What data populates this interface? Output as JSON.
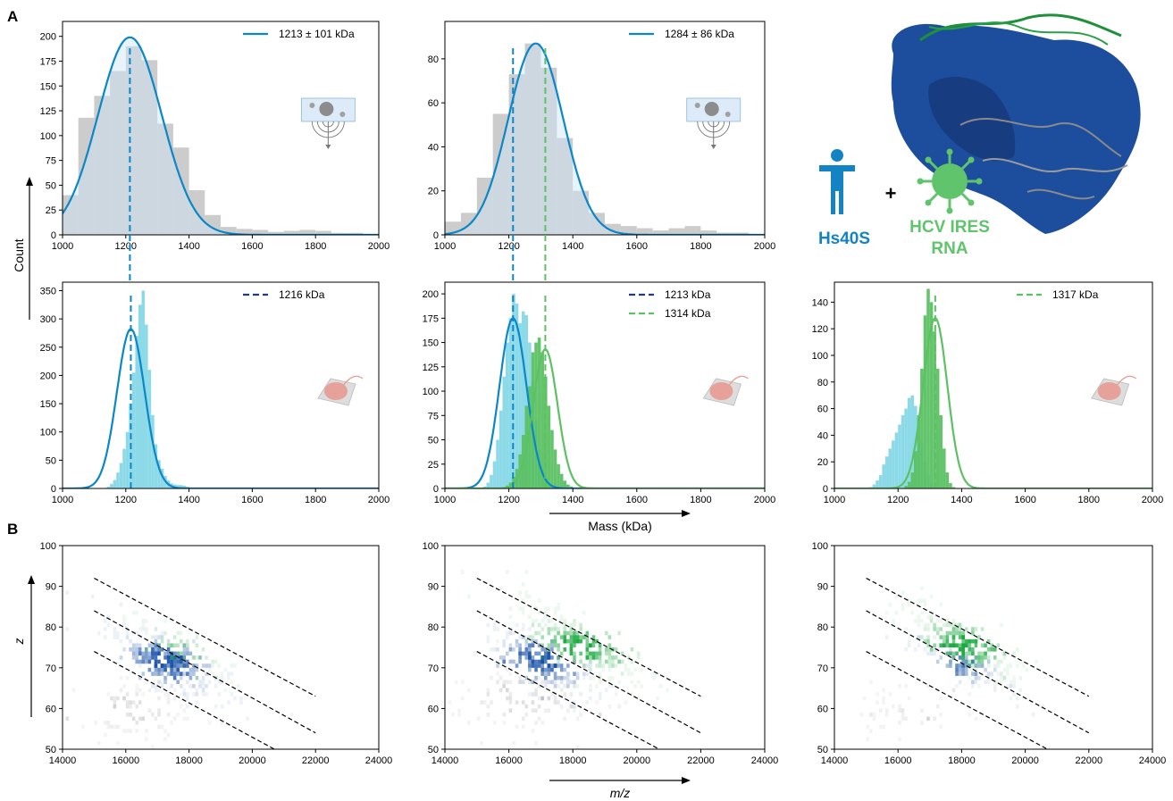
{
  "panel_labels": {
    "a": "A",
    "b": "B"
  },
  "axis_texts": {
    "count": "Count",
    "mass": "Mass (kDa)",
    "z": "z",
    "mz": "m/z"
  },
  "inset": {
    "hs40s": "Hs40S",
    "plus": "+",
    "hcv_line1": "HCV IRES",
    "hcv_line2": "RNA"
  },
  "colors": {
    "light_blue": "#0a87c8",
    "cyan_hist": "#8cd9e8",
    "gray_hist": "#cccccc",
    "green": "#1aa640",
    "green_hist": "#5cc163",
    "navy": "#1f3a8c",
    "hs40s_text": "#1483c3",
    "hcv_text": "#5fc46b",
    "blue_heat": "#1750a8",
    "green_heat": "#16a83c"
  },
  "chart_data": [
    {
      "id": "A-top-left",
      "type": "bar",
      "xlim": [
        1000,
        2000
      ],
      "ylim": [
        0,
        215
      ],
      "xticks": [
        1000,
        1200,
        1400,
        1600,
        1800,
        2000
      ],
      "yticks": [
        0,
        25,
        50,
        75,
        100,
        125,
        150,
        175,
        200
      ],
      "bin_start": 1000,
      "bin_width": 50,
      "bars": [
        {
          "color": "gray",
          "values": [
            40,
            118,
            140,
            165,
            190,
            176,
            112,
            88,
            45,
            20,
            8,
            6,
            5,
            3,
            4,
            5,
            4,
            2,
            2,
            1
          ]
        }
      ],
      "fits": [
        {
          "type": "gauss",
          "mu": 1213,
          "sigma": 101,
          "amp": 199,
          "color": "light_blue"
        }
      ],
      "vlines": [
        {
          "x": 1213,
          "color": "light_blue",
          "to_bottom": true
        }
      ],
      "legend": [
        {
          "label": "1213 ± 101 kDa",
          "style": "solid",
          "color": "light_blue"
        }
      ],
      "icon": "mass-photometry-icon"
    },
    {
      "id": "A-top-middle",
      "type": "bar",
      "xlim": [
        1000,
        2000
      ],
      "ylim": [
        0,
        97
      ],
      "xticks": [
        1000,
        1200,
        1400,
        1600,
        1800,
        2000
      ],
      "yticks": [
        0,
        20,
        40,
        60,
        80
      ],
      "bin_start": 1000,
      "bin_width": 50,
      "bars": [
        {
          "color": "gray",
          "values": [
            6,
            10,
            26,
            55,
            73,
            87,
            76,
            44,
            20,
            10,
            5,
            4,
            3,
            2,
            3,
            4,
            2,
            1,
            1,
            0
          ]
        }
      ],
      "fits": [
        {
          "type": "gauss",
          "mu": 1284,
          "sigma": 86,
          "amp": 87,
          "color": "light_blue"
        }
      ],
      "vlines": [
        {
          "x": 1213,
          "color": "light_blue",
          "to_bottom": true
        },
        {
          "x": 1314,
          "color": "green",
          "to_bottom": true
        }
      ],
      "legend": [
        {
          "label": "1284 ± 86 kDa",
          "style": "solid",
          "color": "light_blue"
        }
      ],
      "icon": "mass-photometry-icon"
    },
    {
      "id": "A-bottom-left",
      "type": "bar",
      "xlim": [
        1000,
        2000
      ],
      "ylim": [
        0,
        365
      ],
      "xticks": [
        1000,
        1200,
        1400,
        1600,
        1800,
        2000
      ],
      "yticks": [
        0,
        50,
        100,
        150,
        200,
        250,
        300,
        350
      ],
      "bin_start": 1000,
      "bin_width": 10,
      "bars": [
        {
          "color": "cyan",
          "values": [
            0,
            0,
            0,
            0,
            0,
            0,
            0,
            0,
            0,
            0,
            0,
            0,
            0,
            1,
            3,
            8,
            15,
            28,
            45,
            70,
            100,
            150,
            205,
            270,
            325,
            350,
            290,
            210,
            130,
            78,
            50,
            35,
            22,
            14,
            9,
            7,
            6,
            6,
            5,
            3,
            1
          ]
        }
      ],
      "fits": [
        {
          "type": "gauss",
          "mu": 1216,
          "sigma": 44,
          "amp": 282,
          "color": "light_blue"
        }
      ],
      "vlines": [
        {
          "x": 1216,
          "color": "light_blue",
          "to_bottom": false
        }
      ],
      "legend": [
        {
          "label": "1216 kDa",
          "style": "dashed",
          "color": "navy"
        }
      ],
      "icon": "nanopore-icon"
    },
    {
      "id": "A-bottom-middle",
      "type": "bar",
      "xlim": [
        1000,
        2000
      ],
      "ylim": [
        0,
        212
      ],
      "xticks": [
        1000,
        1200,
        1400,
        1600,
        1800,
        2000
      ],
      "yticks": [
        0,
        25,
        50,
        75,
        100,
        125,
        150,
        175,
        200
      ],
      "bin_start": 1000,
      "bin_width": 10,
      "bars": [
        {
          "color": "cyan",
          "values": [
            0,
            0,
            0,
            0,
            0,
            0,
            0,
            0,
            0,
            0,
            0,
            0,
            2,
            6,
            14,
            28,
            50,
            80,
            115,
            150,
            175,
            200,
            190,
            170,
            182,
            178,
            150,
            110,
            70,
            40,
            20,
            10,
            5,
            2,
            1,
            0
          ]
        },
        {
          "color": "green",
          "values": [
            0,
            0,
            0,
            0,
            0,
            0,
            0,
            0,
            0,
            0,
            0,
            0,
            0,
            0,
            0,
            0,
            0,
            0,
            1,
            3,
            6,
            12,
            20,
            35,
            55,
            85,
            105,
            140,
            150,
            155,
            140,
            115,
            85,
            60,
            40,
            25,
            15,
            8,
            4,
            2,
            1,
            0,
            0
          ]
        }
      ],
      "fits": [
        {
          "type": "gauss",
          "mu": 1213,
          "sigma": 42,
          "amp": 175,
          "color": "light_blue"
        },
        {
          "type": "gauss",
          "mu": 1314,
          "sigma": 38,
          "amp": 143,
          "color": "green"
        }
      ],
      "vlines": [
        {
          "x": 1213,
          "color": "light_blue",
          "to_bottom": false
        },
        {
          "x": 1314,
          "color": "green",
          "to_bottom": false
        }
      ],
      "legend": [
        {
          "label": "1213 kDa",
          "style": "dashed",
          "color": "navy"
        },
        {
          "label": "1314 kDa",
          "style": "dashed",
          "color": "green"
        }
      ],
      "icon": "nanopore-icon"
    },
    {
      "id": "A-bottom-right",
      "type": "bar",
      "xlim": [
        1000,
        2000
      ],
      "ylim": [
        0,
        155
      ],
      "xticks": [
        1000,
        1200,
        1400,
        1600,
        1800,
        2000
      ],
      "yticks": [
        0,
        20,
        40,
        60,
        80,
        100,
        120,
        140
      ],
      "bin_start": 1000,
      "bin_width": 10,
      "bars": [
        {
          "color": "cyan",
          "values": [
            0,
            0,
            0,
            0,
            0,
            0,
            0,
            0,
            0,
            0,
            0,
            1,
            3,
            6,
            10,
            18,
            24,
            30,
            36,
            42,
            48,
            55,
            60,
            68,
            70,
            62,
            52,
            35,
            20,
            10,
            4,
            1,
            0
          ]
        },
        {
          "color": "green",
          "values": [
            0,
            0,
            0,
            0,
            0,
            0,
            0,
            0,
            0,
            0,
            0,
            0,
            0,
            0,
            0,
            0,
            0,
            0,
            0,
            0,
            0,
            0,
            2,
            5,
            12,
            28,
            55,
            90,
            130,
            150,
            140,
            118,
            90,
            55,
            30,
            12,
            4,
            1,
            0
          ]
        }
      ],
      "fits": [
        {
          "type": "gauss",
          "mu": 1317,
          "sigma": 38,
          "amp": 128,
          "color": "green"
        }
      ],
      "vlines": [
        {
          "x": 1317,
          "color": "green",
          "to_bottom": false
        }
      ],
      "legend": [
        {
          "label": "1317 kDa",
          "style": "dashed",
          "color": "green"
        }
      ],
      "icon": "nanopore-icon"
    },
    {
      "id": "B-left",
      "type": "heatmap",
      "xlim": [
        14000,
        24000
      ],
      "ylim": [
        50,
        100
      ],
      "xticks": [
        14000,
        16000,
        18000,
        20000,
        22000,
        24000
      ],
      "yticks": [
        50,
        60,
        70,
        80,
        90,
        100
      ],
      "guide_lines": [
        {
          "x": [
            15000,
            22000
          ],
          "y": [
            92,
            63
          ]
        },
        {
          "x": [
            15000,
            22000
          ],
          "y": [
            84,
            54
          ]
        },
        {
          "x": [
            15000,
            20700
          ],
          "y": [
            74,
            50
          ]
        }
      ],
      "clusters": [
        {
          "color": "blue",
          "cx": 17200,
          "cy": 71,
          "sx": 900,
          "sy": 3.2,
          "peak": 0.9,
          "n": 260
        },
        {
          "color": "green",
          "cx": 17600,
          "cy": 74,
          "sx": 1100,
          "sy": 3,
          "peak": 0.35,
          "n": 70
        },
        {
          "color": "gray",
          "cx": 16200,
          "cy": 59,
          "sx": 1000,
          "sy": 4,
          "peak": 0.25,
          "n": 90
        }
      ]
    },
    {
      "id": "B-middle",
      "type": "heatmap",
      "xlim": [
        14000,
        24000
      ],
      "ylim": [
        50,
        100
      ],
      "xticks": [
        14000,
        16000,
        18000,
        20000,
        22000,
        24000
      ],
      "yticks": [
        50,
        60,
        70,
        80,
        90,
        100
      ],
      "guide_lines": [
        {
          "x": [
            15000,
            22000
          ],
          "y": [
            92,
            63
          ]
        },
        {
          "x": [
            15000,
            22000
          ],
          "y": [
            84,
            54
          ]
        },
        {
          "x": [
            15000,
            20700
          ],
          "y": [
            74,
            50
          ]
        }
      ],
      "clusters": [
        {
          "color": "blue",
          "cx": 16900,
          "cy": 71,
          "sx": 900,
          "sy": 3.2,
          "peak": 0.85,
          "n": 220
        },
        {
          "color": "green",
          "cx": 18200,
          "cy": 75,
          "sx": 1100,
          "sy": 3.2,
          "peak": 0.85,
          "n": 230
        },
        {
          "color": "gray",
          "cx": 16500,
          "cy": 62,
          "sx": 1500,
          "sy": 5,
          "peak": 0.25,
          "n": 110
        }
      ]
    },
    {
      "id": "B-right",
      "type": "heatmap",
      "xlim": [
        14000,
        24000
      ],
      "ylim": [
        50,
        100
      ],
      "xticks": [
        14000,
        16000,
        18000,
        20000,
        22000,
        24000
      ],
      "yticks": [
        50,
        60,
        70,
        80,
        90,
        100
      ],
      "guide_lines": [
        {
          "x": [
            15000,
            22000
          ],
          "y": [
            92,
            63
          ]
        },
        {
          "x": [
            15000,
            22000
          ],
          "y": [
            84,
            54
          ]
        },
        {
          "x": [
            15000,
            20700
          ],
          "y": [
            74,
            50
          ]
        }
      ],
      "clusters": [
        {
          "color": "green",
          "cx": 18000,
          "cy": 75,
          "sx": 900,
          "sy": 3,
          "peak": 0.9,
          "n": 230
        },
        {
          "color": "blue",
          "cx": 18000,
          "cy": 70,
          "sx": 800,
          "sy": 2.5,
          "peak": 0.55,
          "n": 90
        },
        {
          "color": "gray",
          "cx": 16400,
          "cy": 59,
          "sx": 900,
          "sy": 3.5,
          "peak": 0.2,
          "n": 50
        }
      ]
    }
  ]
}
